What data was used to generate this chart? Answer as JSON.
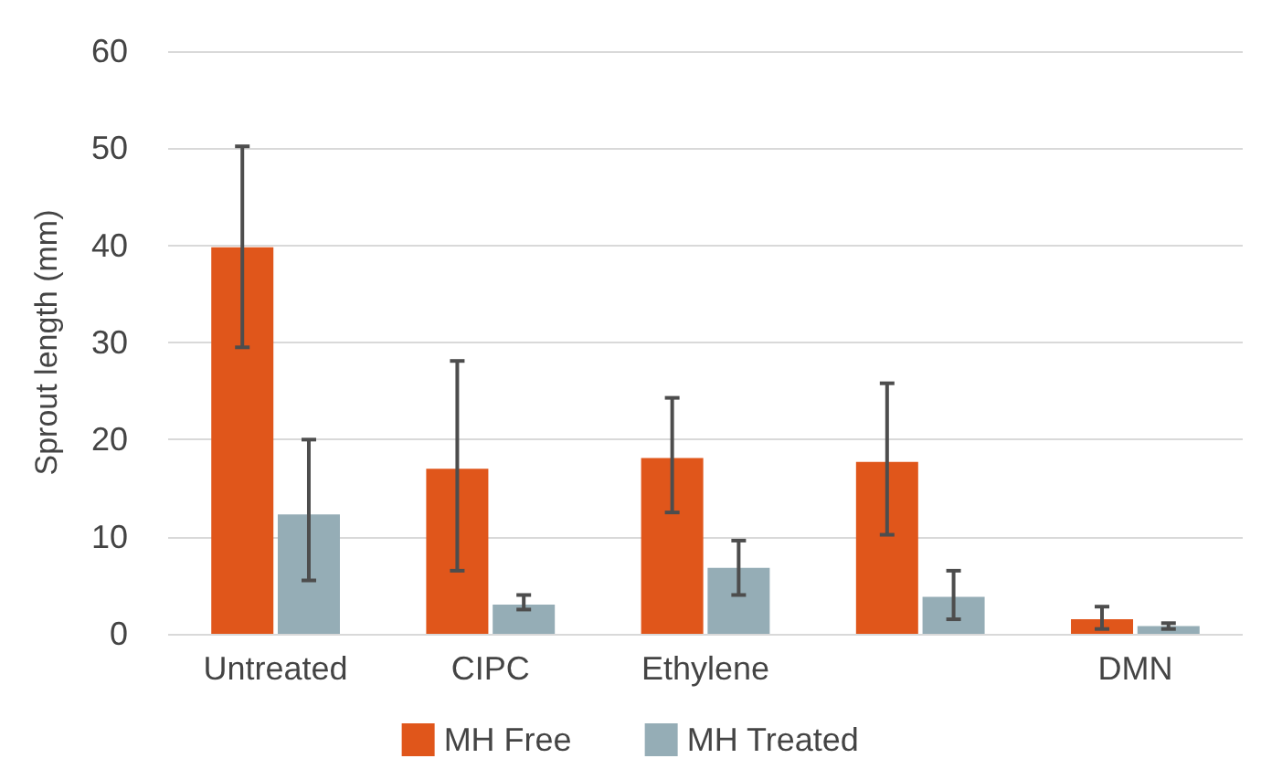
{
  "chart_data": {
    "type": "bar",
    "ylabel": "Sprout length (mm)",
    "categories": [
      "Untreated",
      "CIPC",
      "Ethylene",
      null,
      "DMN"
    ],
    "series": [
      {
        "name": "MH Free",
        "color": "#e0561b",
        "values": [
          39.8,
          17.0,
          18.1,
          17.7,
          1.5
        ],
        "errors": [
          [
            29.5,
            50.2
          ],
          [
            6.5,
            28.1
          ],
          [
            12.5,
            24.3
          ],
          [
            10.2,
            25.8
          ],
          [
            0.5,
            2.8
          ]
        ]
      },
      {
        "name": "MH Treated",
        "color": "#95adb6",
        "values": [
          12.3,
          3.0,
          6.8,
          3.8,
          0.8
        ],
        "errors": [
          [
            5.5,
            20.0
          ],
          [
            2.5,
            4.0
          ],
          [
            4.0,
            9.6
          ],
          [
            1.5,
            6.5
          ],
          [
            0.5,
            1.1
          ]
        ]
      }
    ],
    "ylim": [
      0,
      60
    ],
    "yticks": [
      0,
      10,
      20,
      30,
      40,
      50,
      60
    ],
    "grid": "y",
    "legend": "bottom"
  }
}
